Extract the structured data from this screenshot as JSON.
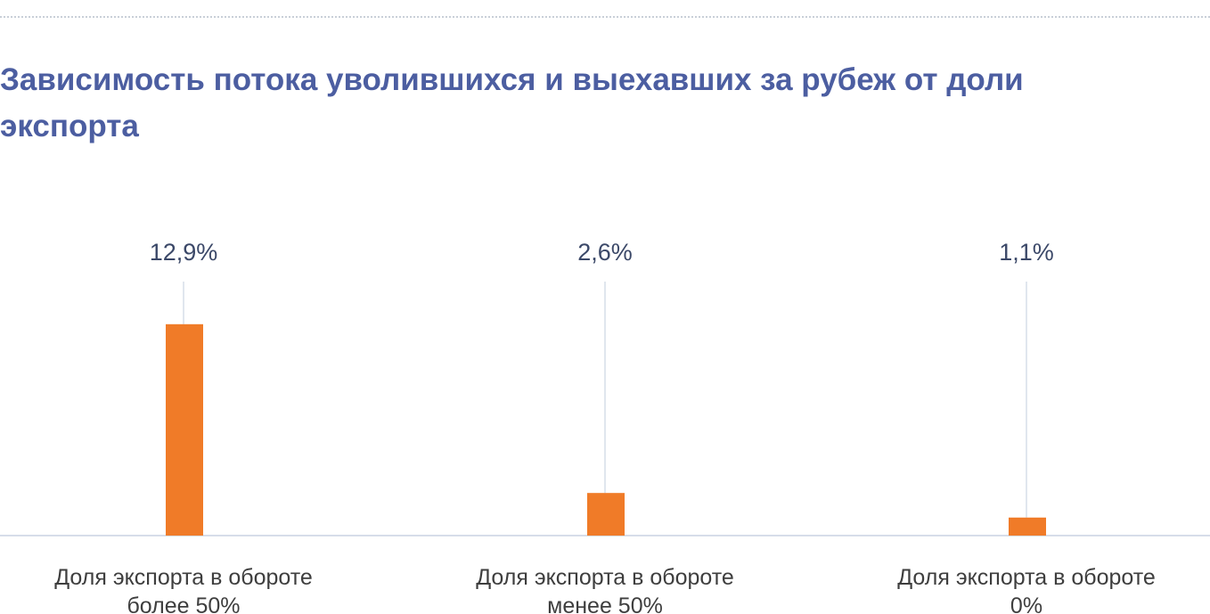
{
  "chart_data": {
    "type": "bar",
    "title": "Зависимость потока уволившихся и выехавших за рубеж от доли экспорта",
    "categories": [
      [
        "Доля экспорта в обороте",
        "более 50%"
      ],
      [
        "Доля экспорта в обороте",
        "менее 50%"
      ],
      [
        "Доля экспорта в обороте",
        "0%"
      ]
    ],
    "values": [
      12.9,
      2.6,
      1.1
    ],
    "value_labels": [
      "12,9%",
      "2,6%",
      "1,1%"
    ],
    "ylim": [
      0,
      15.5
    ],
    "grid": false,
    "legend": "none",
    "colors": {
      "bar": "#f07b28",
      "title": "#4c5ea1",
      "axis": "#d6dde9",
      "leader": "#d6dde9"
    }
  }
}
